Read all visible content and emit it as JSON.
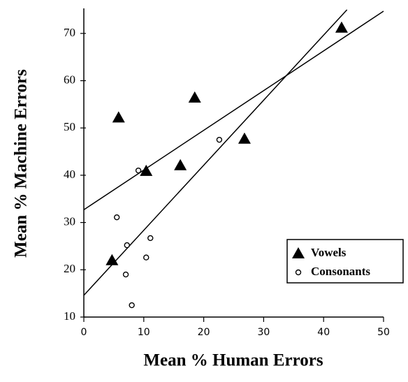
{
  "chart_data": {
    "type": "scatter",
    "x_label": "Mean % Human Errors",
    "y_label": "Mean % Machine Errors",
    "xlim": [
      0,
      50
    ],
    "xticks": [
      0,
      10,
      20,
      30,
      40,
      50
    ],
    "ylim": [
      10,
      75
    ],
    "yticks": [
      10,
      20,
      30,
      40,
      50,
      60,
      70
    ],
    "grid": false,
    "legend": "lower right",
    "series": [
      {
        "name": "Vowels",
        "color": "#000000",
        "marker": "triangle",
        "x": [
          4.7,
          5.8,
          10.4,
          16.1,
          18.5,
          26.8,
          43.0
        ],
        "values": [
          22.0,
          52.2,
          40.9,
          42.1,
          56.4,
          47.7,
          71.2
        ]
      },
      {
        "name": "Consonants",
        "color": "#000000",
        "marker": "circle",
        "x": [
          5.5,
          7.0,
          7.2,
          8.0,
          9.1,
          10.4,
          11.1,
          22.6
        ],
        "values": [
          31.1,
          19.0,
          25.2,
          12.5,
          41.0,
          22.6,
          26.7,
          47.5
        ]
      }
    ],
    "fit_lines": [
      {
        "x": [
          0,
          50
        ],
        "values": [
          32.7,
          74.7
        ]
      },
      {
        "x": [
          0,
          43.9
        ],
        "values": [
          14.6,
          75
        ]
      }
    ]
  }
}
